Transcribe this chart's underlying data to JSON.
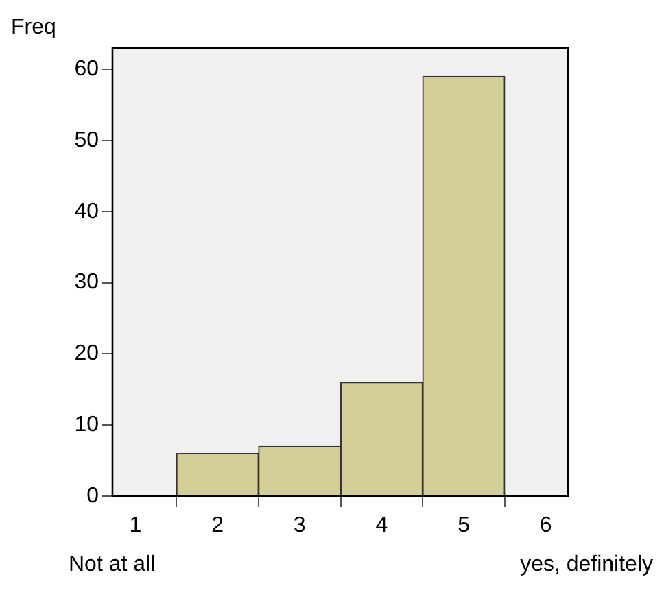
{
  "chart_data": {
    "type": "histogram",
    "ylabel": "Freq",
    "bins": [
      1.5,
      2.5,
      3.5,
      4.5,
      5.5
    ],
    "values": [
      6,
      7,
      16,
      59
    ],
    "color": "#d3ce97",
    "xlim": [
      0.72,
      6.27
    ],
    "xticks": [
      1,
      2,
      3,
      4,
      5,
      6
    ],
    "ylim": [
      0,
      63
    ],
    "yticks": [
      0,
      10,
      20,
      30,
      40,
      50,
      60
    ],
    "legend": false,
    "annotations": [
      "Not at all",
      "yes, definitely"
    ]
  }
}
